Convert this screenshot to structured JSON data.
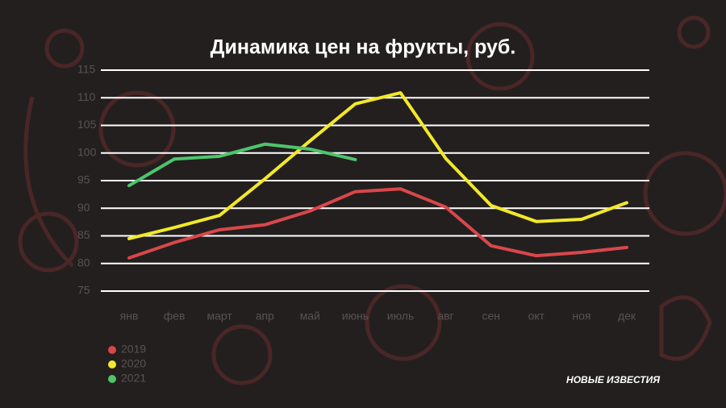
{
  "chart_data": {
    "type": "line",
    "title": "Динамика цен на фрукты, руб.",
    "categories": [
      "янв",
      "фев",
      "март",
      "апр",
      "май",
      "июнь",
      "июль",
      "авг",
      "сен",
      "окт",
      "ноя",
      "дек"
    ],
    "series": [
      {
        "name": "2019",
        "color": "#d9474a",
        "values": [
          81,
          83.8,
          86.1,
          87,
          89.5,
          93,
          93.5,
          90.2,
          83.2,
          81.4,
          82,
          82.9
        ]
      },
      {
        "name": "2020",
        "color": "#f2e82a",
        "values": [
          84.5,
          86.5,
          88.7,
          95.3,
          102.2,
          108.9,
          110.9,
          99,
          90.5,
          87.6,
          88,
          91
        ]
      },
      {
        "name": "2021",
        "color": "#4ec46c",
        "values": [
          94.1,
          98.9,
          99.4,
          101.6,
          100.7,
          98.8,
          null,
          null,
          null,
          null,
          null,
          null
        ]
      }
    ],
    "ylim": [
      75,
      115
    ],
    "yticks": [
      75,
      80,
      85,
      90,
      95,
      100,
      105,
      110,
      115
    ],
    "grid": true,
    "source": "НОВЫЕ ИЗВЕСТИЯ"
  }
}
